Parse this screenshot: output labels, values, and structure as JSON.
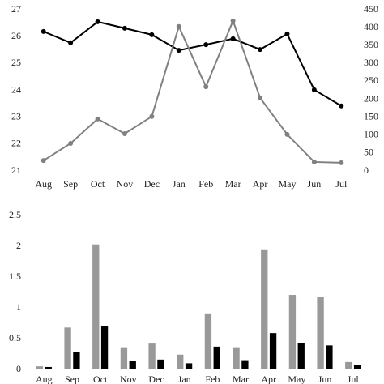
{
  "chart_data": [
    {
      "type": "line",
      "categories": [
        "Aug",
        "Sep",
        "Oct",
        "Nov",
        "Dec",
        "Jan",
        "Feb",
        "Mar",
        "Apr",
        "May",
        "Jun",
        "Jul"
      ],
      "series": [
        {
          "color": "#000000",
          "values": [
            26.19,
            25.77,
            26.55,
            26.31,
            26.07,
            25.49,
            25.7,
            25.92,
            25.52,
            26.1,
            24.02,
            23.42
          ]
        },
        {
          "color": "#808080",
          "axis": "y2",
          "values": [
            29,
            77,
            145,
            104,
            152,
            403,
            235,
            419,
            204,
            102,
            25,
            23
          ]
        }
      ],
      "ylim": [
        21,
        27
      ],
      "yticks": [
        21,
        22,
        23,
        24,
        25,
        26,
        27
      ],
      "y2lim": [
        0,
        450
      ],
      "y2ticks": [
        0,
        50,
        100,
        150,
        200,
        250,
        300,
        350,
        400,
        450
      ]
    },
    {
      "type": "bar",
      "categories": [
        "Aug",
        "Sep",
        "Oct",
        "Nov",
        "Dec",
        "Jan",
        "Feb",
        "Mar",
        "Apr",
        "May",
        "Jun",
        "Jul"
      ],
      "series": [
        {
          "color": "#999999",
          "values": [
            0.05,
            0.68,
            2.03,
            0.36,
            0.42,
            0.24,
            0.91,
            0.36,
            1.95,
            1.21,
            1.18,
            0.12
          ]
        },
        {
          "color": "#000000",
          "values": [
            0.04,
            0.28,
            0.71,
            0.14,
            0.16,
            0.1,
            0.37,
            0.15,
            0.59,
            0.43,
            0.39,
            0.07
          ]
        }
      ],
      "ylim": [
        0,
        2.5
      ],
      "yticks": [
        0,
        0.5,
        1,
        1.5,
        2,
        2.5
      ]
    }
  ]
}
